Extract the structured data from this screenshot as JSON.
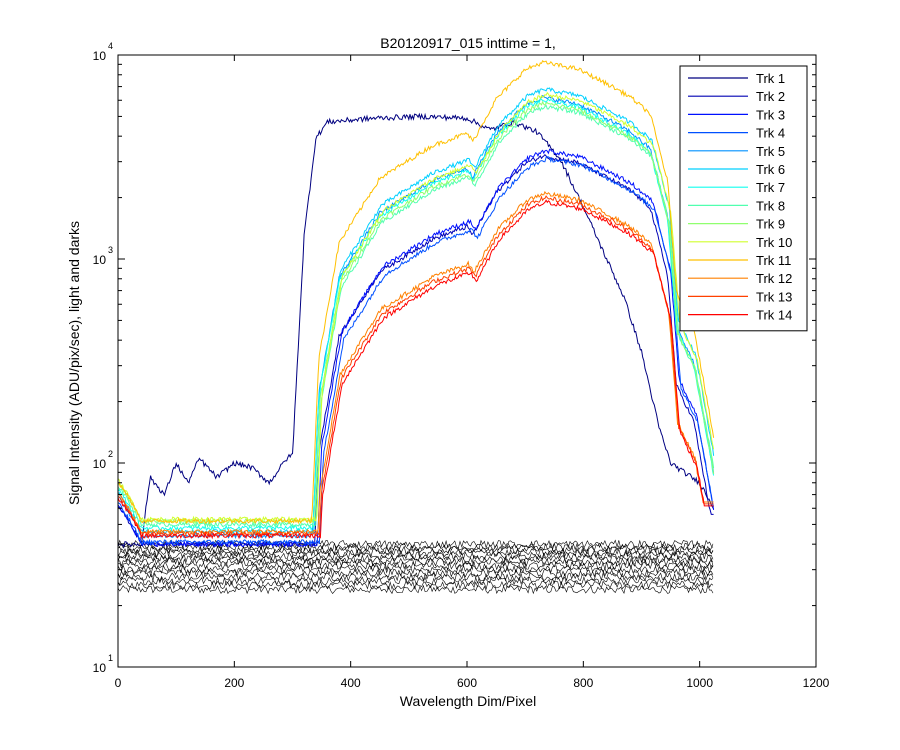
{
  "chart_data": {
    "type": "line",
    "title": "B20120917_015 inttime = 1,",
    "xlabel": "Wavelength Dim/Pixel",
    "ylabel": "Signal Intensity (ADU/pix/sec), light and darks",
    "xlim": [
      0,
      1200
    ],
    "ylim": [
      10,
      10000
    ],
    "yscale": "log",
    "x_ticks": [
      0,
      200,
      400,
      600,
      800,
      1000,
      1200
    ],
    "y_ticks": [
      {
        "base": "10",
        "exp": "1"
      },
      {
        "base": "10",
        "exp": "2"
      },
      {
        "base": "10",
        "exp": "3"
      },
      {
        "base": "10",
        "exp": "4"
      }
    ],
    "legend_position": "top-right",
    "series": [
      {
        "name": "Trk 1",
        "color": "#000080",
        "profile": "step",
        "peak": 5000,
        "dark": 40,
        "offset": 0
      },
      {
        "name": "Trk 2",
        "color": "#0000b4",
        "profile": "lamp",
        "peak": 3200,
        "dark": 40,
        "offset": 0
      },
      {
        "name": "Trk 3",
        "color": "#0010ff",
        "profile": "lamp",
        "peak": 3400,
        "dark": 40,
        "offset": 5
      },
      {
        "name": "Trk 4",
        "color": "#0050ff",
        "profile": "lamp",
        "peak": 3100,
        "dark": 41,
        "offset": 8
      },
      {
        "name": "Trk 5",
        "color": "#0090ff",
        "profile": "lamp",
        "peak": 6200,
        "dark": 44,
        "offset": 0
      },
      {
        "name": "Trk 6",
        "color": "#00d0ff",
        "profile": "lamp",
        "peak": 6800,
        "dark": 46,
        "offset": 3
      },
      {
        "name": "Trk 7",
        "color": "#10ffef",
        "profile": "lamp",
        "peak": 6000,
        "dark": 48,
        "offset": 0
      },
      {
        "name": "Trk 8",
        "color": "#50ffaf",
        "profile": "lamp",
        "peak": 5600,
        "dark": 50,
        "offset": 4
      },
      {
        "name": "Trk 9",
        "color": "#90ff6f",
        "profile": "lamp",
        "peak": 5800,
        "dark": 52,
        "offset": 2
      },
      {
        "name": "Trk 10",
        "color": "#d0ff2f",
        "profile": "lamp",
        "peak": 6400,
        "dark": 53,
        "offset": 6
      },
      {
        "name": "Trk 11",
        "color": "#ffc000",
        "profile": "lamp",
        "peak": 9200,
        "dark": 52,
        "offset": 0
      },
      {
        "name": "Trk 12",
        "color": "#ff8000",
        "profile": "lamp",
        "peak": 2100,
        "dark": 46,
        "offset": 2
      },
      {
        "name": "Trk 13",
        "color": "#ff4000",
        "profile": "lamp",
        "peak": 2000,
        "dark": 45,
        "offset": 4
      },
      {
        "name": "Trk 14",
        "color": "#ff0000",
        "profile": "lamp",
        "peak": 1900,
        "dark": 44,
        "offset": 6
      }
    ],
    "darks": {
      "color": "#000000",
      "count": 14,
      "range": [
        24,
        40
      ]
    },
    "grid": false
  }
}
